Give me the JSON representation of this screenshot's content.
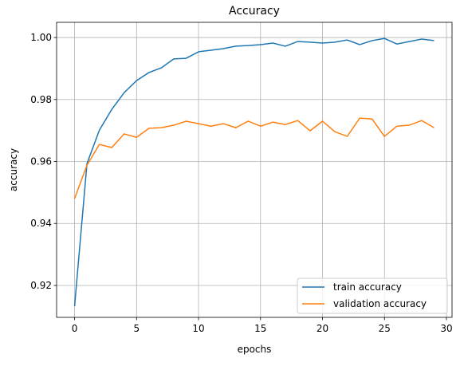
{
  "chart_data": {
    "type": "line",
    "title": "Accuracy",
    "x_label": "epochs",
    "y_label": "accuracy",
    "x": [
      0,
      1,
      2,
      3,
      4,
      5,
      6,
      7,
      8,
      9,
      10,
      11,
      12,
      13,
      14,
      15,
      16,
      17,
      18,
      19,
      20,
      21,
      22,
      23,
      24,
      25,
      26,
      27,
      28,
      29
    ],
    "series": [
      {
        "name": "train accuracy",
        "color": "#1f77b4",
        "values": [
          0.9133,
          0.9593,
          0.9701,
          0.9768,
          0.9822,
          0.9861,
          0.9887,
          0.9902,
          0.9931,
          0.9933,
          0.9954,
          0.9959,
          0.9964,
          0.9972,
          0.9974,
          0.9977,
          0.9982,
          0.9972,
          0.9987,
          0.9985,
          0.9982,
          0.9985,
          0.9992,
          0.9977,
          0.999,
          0.9997,
          0.9979,
          0.9987,
          0.9995,
          0.999
        ]
      },
      {
        "name": "validation accuracy",
        "color": "#ff7f0e",
        "values": [
          0.948,
          0.9588,
          0.9655,
          0.9645,
          0.9689,
          0.9678,
          0.9707,
          0.9709,
          0.9717,
          0.973,
          0.9722,
          0.9714,
          0.9722,
          0.9709,
          0.973,
          0.9714,
          0.9727,
          0.9719,
          0.9732,
          0.9699,
          0.973,
          0.9696,
          0.9681,
          0.974,
          0.9737,
          0.9681,
          0.9714,
          0.9717,
          0.9732,
          0.9709
        ]
      }
    ],
    "xlim": [
      -1.45,
      30.45
    ],
    "ylim": [
      0.9097,
      1.0049
    ],
    "xticks": [
      0,
      5,
      10,
      15,
      20,
      25,
      30
    ],
    "yticks": [
      0.92,
      0.94,
      0.96,
      0.98,
      {
        "value": 1,
        "label": "1.00"
      }
    ],
    "grid": true,
    "legend": "lower right"
  }
}
